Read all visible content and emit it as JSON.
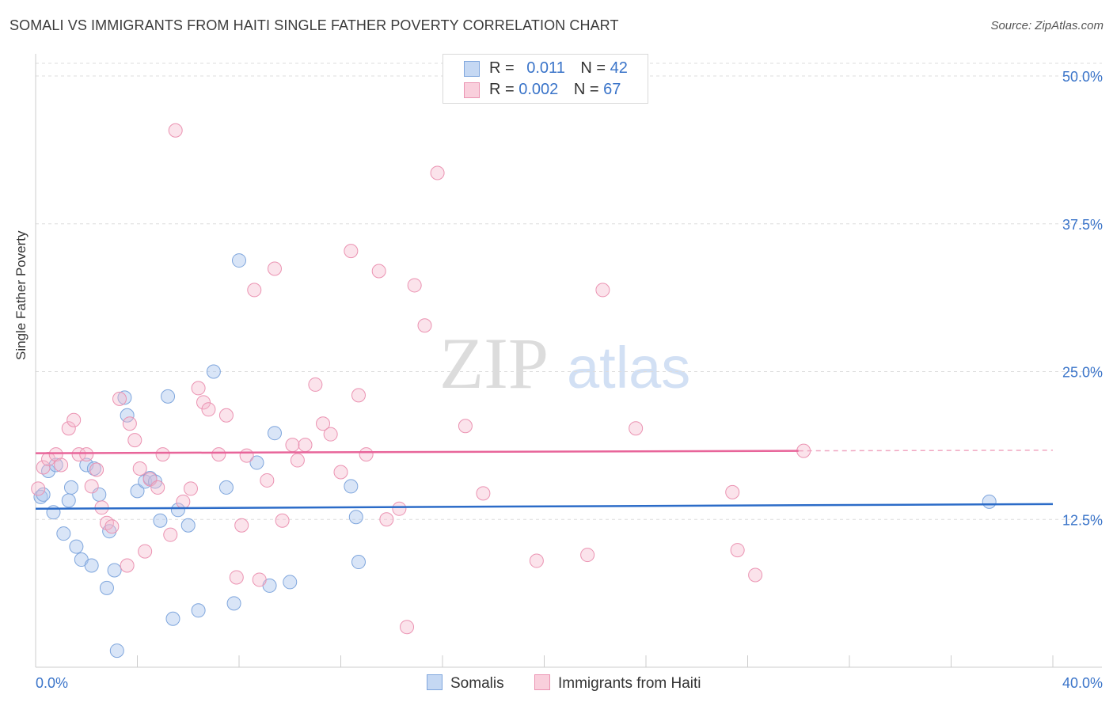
{
  "title": "SOMALI VS IMMIGRANTS FROM HAITI SINGLE FATHER POVERTY CORRELATION CHART",
  "source": "Source: ZipAtlas.com",
  "watermark": {
    "zip": "ZIP",
    "atlas": "atlas"
  },
  "legend_top": {
    "rows": [
      {
        "r_label": "R = ",
        "r_value": "0.011",
        "n_label": "N = ",
        "n_value": "42"
      },
      {
        "r_label": "R = ",
        "r_value": "0.002",
        "n_label": "N = ",
        "n_value": "67"
      }
    ]
  },
  "legend_bottom": {
    "series1": "Somalis",
    "series2": "Immigrants from Haiti"
  },
  "colors": {
    "blue": "#3a74c9",
    "blue_fill": "#aac6ee",
    "pink": "#e8659a",
    "pink_fill": "#f5b8cc",
    "axis_text": "#3a74c9"
  },
  "chart_data": {
    "type": "scatter",
    "title": "SOMALI VS IMMIGRANTS FROM HAITI SINGLE FATHER POVERTY CORRELATION CHART",
    "xlabel": "",
    "ylabel": "Single Father Poverty",
    "xlim": [
      0,
      40
    ],
    "ylim": [
      0,
      50
    ],
    "x_tick_labels": [
      "0.0%",
      "40.0%"
    ],
    "y_ticks": [
      12.5,
      25.0,
      37.5,
      50.0
    ],
    "y_tick_labels": [
      "12.5%",
      "25.0%",
      "37.5%",
      "50.0%"
    ],
    "grid": "horizontal dashed",
    "legend_position": "top-center",
    "series": [
      {
        "name": "Somalis",
        "color": "#3a74c9",
        "trend": {
          "x": [
            0,
            40
          ],
          "y": [
            13.4,
            13.8
          ]
        },
        "points": [
          [
            0.2,
            14.4
          ],
          [
            0.5,
            16.6
          ],
          [
            0.8,
            17.1
          ],
          [
            0.7,
            13.1
          ],
          [
            1.1,
            11.3
          ],
          [
            1.3,
            14.1
          ],
          [
            1.4,
            15.2
          ],
          [
            1.6,
            10.2
          ],
          [
            1.8,
            9.1
          ],
          [
            2.0,
            17.1
          ],
          [
            2.2,
            8.6
          ],
          [
            2.3,
            16.8
          ],
          [
            2.5,
            14.6
          ],
          [
            2.8,
            6.7
          ],
          [
            2.9,
            11.5
          ],
          [
            3.1,
            8.2
          ],
          [
            3.2,
            1.4
          ],
          [
            3.5,
            22.8
          ],
          [
            3.6,
            21.3
          ],
          [
            4.0,
            14.9
          ],
          [
            4.3,
            15.7
          ],
          [
            4.5,
            16.0
          ],
          [
            4.7,
            15.7
          ],
          [
            4.9,
            12.4
          ],
          [
            5.2,
            22.9
          ],
          [
            5.4,
            4.1
          ],
          [
            5.6,
            13.3
          ],
          [
            6.0,
            12.0
          ],
          [
            6.4,
            4.8
          ],
          [
            7.0,
            25.0
          ],
          [
            7.5,
            15.2
          ],
          [
            7.8,
            5.4
          ],
          [
            8.0,
            34.4
          ],
          [
            8.7,
            17.3
          ],
          [
            9.2,
            6.9
          ],
          [
            9.4,
            19.8
          ],
          [
            10.0,
            7.2
          ],
          [
            12.4,
            15.3
          ],
          [
            12.6,
            12.7
          ],
          [
            12.7,
            8.9
          ],
          [
            37.5,
            14.0
          ],
          [
            0.3,
            14.6
          ]
        ]
      },
      {
        "name": "Immigrants from Haiti",
        "color": "#e8659a",
        "trend": {
          "x": [
            0,
            30
          ],
          "y": [
            18.1,
            18.3
          ],
          "dashed_to": 40
        },
        "points": [
          [
            0.1,
            15.1
          ],
          [
            0.3,
            16.9
          ],
          [
            0.5,
            17.6
          ],
          [
            0.8,
            18.0
          ],
          [
            1.0,
            17.1
          ],
          [
            1.3,
            20.2
          ],
          [
            1.5,
            20.9
          ],
          [
            1.7,
            18.0
          ],
          [
            2.0,
            18.0
          ],
          [
            2.2,
            15.3
          ],
          [
            2.4,
            16.7
          ],
          [
            2.6,
            13.5
          ],
          [
            2.8,
            12.2
          ],
          [
            3.0,
            11.9
          ],
          [
            3.3,
            22.7
          ],
          [
            3.6,
            8.6
          ],
          [
            3.7,
            20.6
          ],
          [
            3.9,
            19.2
          ],
          [
            4.1,
            16.8
          ],
          [
            4.3,
            9.8
          ],
          [
            4.5,
            15.9
          ],
          [
            4.8,
            15.2
          ],
          [
            5.0,
            18.0
          ],
          [
            5.3,
            11.2
          ],
          [
            5.5,
            45.4
          ],
          [
            5.8,
            14.0
          ],
          [
            6.1,
            15.1
          ],
          [
            6.4,
            23.6
          ],
          [
            6.6,
            22.4
          ],
          [
            6.8,
            21.8
          ],
          [
            7.2,
            18.0
          ],
          [
            7.5,
            21.3
          ],
          [
            7.9,
            7.6
          ],
          [
            8.1,
            12.0
          ],
          [
            8.3,
            17.9
          ],
          [
            8.6,
            31.9
          ],
          [
            8.8,
            7.4
          ],
          [
            9.1,
            15.8
          ],
          [
            9.4,
            33.7
          ],
          [
            9.7,
            12.4
          ],
          [
            10.1,
            18.8
          ],
          [
            10.3,
            17.5
          ],
          [
            10.6,
            18.8
          ],
          [
            11.0,
            23.9
          ],
          [
            11.3,
            20.6
          ],
          [
            11.6,
            19.7
          ],
          [
            12.0,
            16.5
          ],
          [
            12.4,
            35.2
          ],
          [
            12.7,
            23.0
          ],
          [
            13.0,
            18.0
          ],
          [
            13.5,
            33.5
          ],
          [
            13.8,
            12.5
          ],
          [
            14.3,
            13.4
          ],
          [
            14.6,
            3.4
          ],
          [
            14.9,
            32.3
          ],
          [
            15.3,
            28.9
          ],
          [
            15.8,
            41.8
          ],
          [
            16.9,
            20.4
          ],
          [
            17.6,
            14.7
          ],
          [
            19.7,
            9.0
          ],
          [
            21.7,
            9.5
          ],
          [
            22.3,
            31.9
          ],
          [
            23.6,
            20.2
          ],
          [
            27.4,
            14.8
          ],
          [
            27.6,
            9.9
          ],
          [
            28.3,
            7.8
          ],
          [
            30.2,
            18.3
          ]
        ]
      }
    ]
  }
}
